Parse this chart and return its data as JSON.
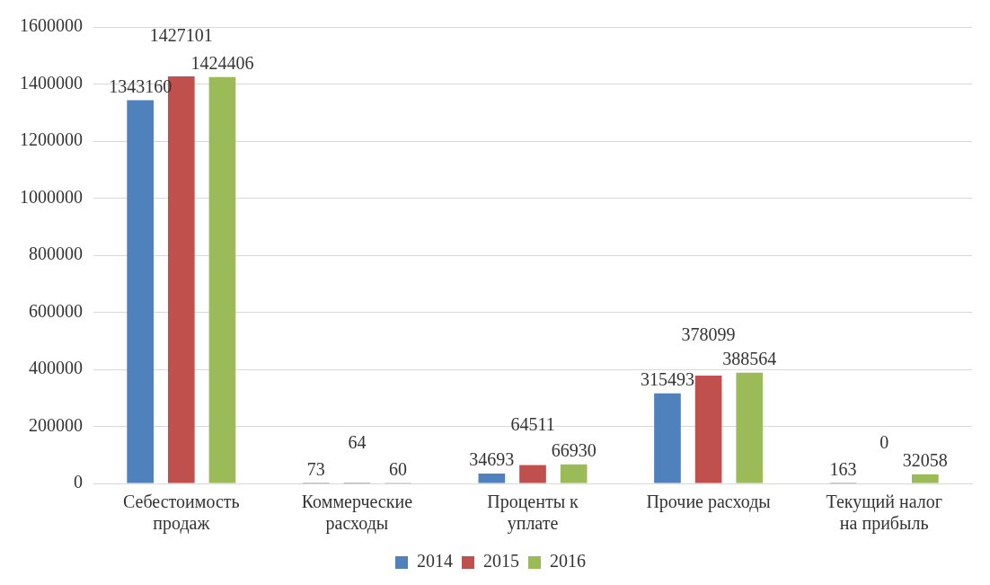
{
  "chart_data": {
    "type": "bar",
    "categories": [
      "Себестоимость продаж",
      "Коммерческие расходы",
      "Проценты к уплате",
      "Прочие расходы",
      "Текущий налог на прибыль"
    ],
    "series": [
      {
        "name": "2014",
        "color": "#4f81bd",
        "values": [
          1343160,
          73,
          34693,
          315493,
          163
        ]
      },
      {
        "name": "2015",
        "color": "#c0504d",
        "values": [
          1427101,
          64,
          64511,
          378099,
          0
        ]
      },
      {
        "name": "2016",
        "color": "#9bbb59",
        "values": [
          1424406,
          60,
          66930,
          388564,
          32058
        ]
      }
    ],
    "ylim": [
      0,
      1600000
    ],
    "yticks": [
      0,
      200000,
      400000,
      600000,
      800000,
      1000000,
      1200000,
      1400000,
      1600000
    ],
    "grid": "y",
    "legend": "bottom",
    "data_labels": true
  }
}
